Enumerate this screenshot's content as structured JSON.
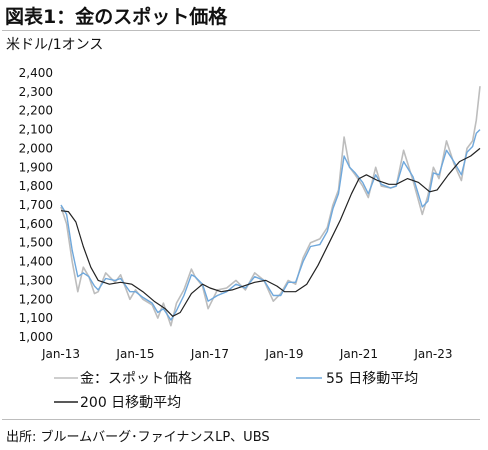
{
  "title": "図表1：金のスポット価格",
  "unit": "米ドル/1オンス",
  "source": "出所: ブルームバーグ･ファイナンスLP、UBS",
  "colors": {
    "spot": "#bdbdbd",
    "ma55": "#6fa8dc",
    "ma200": "#222222"
  },
  "chart_data": {
    "type": "line",
    "title": "図表1：金のスポット価格",
    "ylabel": "米ドル/1オンス",
    "ylim": [
      1000,
      2400
    ],
    "yticks": [
      "1,000",
      "1,100",
      "1,200",
      "1,300",
      "1,400",
      "1,500",
      "1,600",
      "1,700",
      "1,800",
      "1,900",
      "2,000",
      "2,100",
      "2,200",
      "2,300",
      "2,400"
    ],
    "xticks": [
      "Jan-13",
      "Jan-15",
      "Jan-17",
      "Jan-19",
      "Jan-21",
      "Jan-23"
    ],
    "xlim_years": [
      2013.0,
      2024.25
    ],
    "grid": false,
    "legend_position": "bottom",
    "series": [
      {
        "name": "金：スポット価格",
        "key": "spot",
        "x": [
          2013.0,
          2013.15,
          2013.3,
          2013.45,
          2013.6,
          2013.75,
          2013.9,
          2014.0,
          2014.2,
          2014.45,
          2014.6,
          2014.85,
          2015.0,
          2015.2,
          2015.45,
          2015.6,
          2015.75,
          2015.95,
          2016.1,
          2016.3,
          2016.5,
          2016.6,
          2016.8,
          2016.95,
          2017.2,
          2017.45,
          2017.7,
          2017.95,
          2018.2,
          2018.45,
          2018.7,
          2018.9,
          2019.1,
          2019.3,
          2019.5,
          2019.7,
          2019.95,
          2020.15,
          2020.3,
          2020.45,
          2020.6,
          2020.75,
          2020.9,
          2021.1,
          2021.25,
          2021.45,
          2021.6,
          2021.85,
          2022.0,
          2022.2,
          2022.45,
          2022.7,
          2022.85,
          2023.0,
          2023.15,
          2023.35,
          2023.55,
          2023.75,
          2023.9,
          2024.05,
          2024.15,
          2024.25
        ],
        "y": [
          1690,
          1600,
          1400,
          1240,
          1370,
          1320,
          1230,
          1240,
          1340,
          1290,
          1330,
          1200,
          1250,
          1200,
          1170,
          1100,
          1180,
          1060,
          1180,
          1250,
          1360,
          1320,
          1270,
          1150,
          1250,
          1260,
          1300,
          1250,
          1340,
          1300,
          1190,
          1230,
          1300,
          1280,
          1420,
          1500,
          1520,
          1580,
          1700,
          1780,
          2060,
          1900,
          1860,
          1800,
          1740,
          1900,
          1800,
          1790,
          1800,
          1990,
          1830,
          1650,
          1750,
          1900,
          1840,
          2040,
          1920,
          1830,
          2000,
          2040,
          2150,
          2330
        ]
      },
      {
        "name": "55 日移動平均",
        "key": "ma55",
        "x": [
          2013.0,
          2013.15,
          2013.3,
          2013.45,
          2013.6,
          2013.75,
          2013.9,
          2014.0,
          2014.2,
          2014.45,
          2014.6,
          2014.85,
          2015.0,
          2015.2,
          2015.45,
          2015.6,
          2015.75,
          2015.95,
          2016.1,
          2016.3,
          2016.5,
          2016.6,
          2016.8,
          2016.95,
          2017.2,
          2017.45,
          2017.7,
          2017.95,
          2018.2,
          2018.45,
          2018.7,
          2018.9,
          2019.1,
          2019.3,
          2019.5,
          2019.7,
          2019.95,
          2020.15,
          2020.3,
          2020.45,
          2020.6,
          2020.75,
          2020.9,
          2021.1,
          2021.25,
          2021.45,
          2021.6,
          2021.85,
          2022.0,
          2022.2,
          2022.45,
          2022.7,
          2022.85,
          2023.0,
          2023.15,
          2023.35,
          2023.55,
          2023.75,
          2023.9,
          2024.05,
          2024.15,
          2024.25
        ],
        "y": [
          1700,
          1650,
          1460,
          1320,
          1340,
          1320,
          1270,
          1250,
          1310,
          1300,
          1310,
          1240,
          1240,
          1210,
          1180,
          1130,
          1150,
          1090,
          1140,
          1220,
          1330,
          1320,
          1280,
          1190,
          1220,
          1240,
          1280,
          1260,
          1320,
          1300,
          1220,
          1220,
          1290,
          1290,
          1400,
          1480,
          1490,
          1560,
          1680,
          1760,
          1960,
          1900,
          1870,
          1820,
          1760,
          1860,
          1810,
          1790,
          1800,
          1930,
          1850,
          1690,
          1720,
          1870,
          1860,
          1990,
          1930,
          1860,
          1980,
          2010,
          2080,
          2100
        ]
      },
      {
        "name": "200 日移動平均",
        "key": "ma200",
        "x": [
          2013.0,
          2013.2,
          2013.4,
          2013.6,
          2013.8,
          2014.0,
          2014.3,
          2014.6,
          2014.9,
          2015.2,
          2015.5,
          2015.8,
          2016.0,
          2016.2,
          2016.5,
          2016.8,
          2017.0,
          2017.3,
          2017.6,
          2017.9,
          2018.2,
          2018.5,
          2018.8,
          2019.0,
          2019.3,
          2019.6,
          2019.9,
          2020.2,
          2020.5,
          2020.8,
          2021.0,
          2021.2,
          2021.5,
          2021.8,
          2022.0,
          2022.3,
          2022.6,
          2022.9,
          2023.1,
          2023.4,
          2023.7,
          2024.0,
          2024.25
        ],
        "y": [
          1670,
          1665,
          1610,
          1480,
          1370,
          1300,
          1280,
          1290,
          1280,
          1240,
          1190,
          1150,
          1110,
          1130,
          1230,
          1280,
          1260,
          1240,
          1250,
          1270,
          1290,
          1300,
          1270,
          1240,
          1240,
          1280,
          1380,
          1500,
          1620,
          1760,
          1840,
          1860,
          1830,
          1810,
          1810,
          1840,
          1820,
          1770,
          1780,
          1860,
          1930,
          1960,
          2000
        ]
      }
    ]
  }
}
